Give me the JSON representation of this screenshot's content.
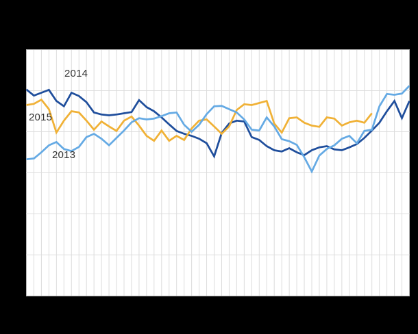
{
  "page": {
    "background": "#000000",
    "plot_background": "#ffffff"
  },
  "chart_data": {
    "type": "line",
    "title": "",
    "xlabel": "",
    "ylabel": "",
    "axis_tick_labels_visible": false,
    "note": "Weekly line chart; axis labels not visible against black background. Values are in horizontal-gridline units (0 = bottom border, 6 = top border).",
    "grid": true,
    "grid_color": "#dcdcdc",
    "border_color": "#b3b3b3",
    "label_color": "#333333",
    "x": [
      1,
      2,
      3,
      4,
      5,
      6,
      7,
      8,
      9,
      10,
      11,
      12,
      13,
      14,
      15,
      16,
      17,
      18,
      19,
      20,
      21,
      22,
      23,
      24,
      25,
      26,
      27,
      28,
      29,
      30,
      31,
      32,
      33,
      34,
      35,
      36,
      37,
      38,
      39,
      40,
      41,
      42,
      43,
      44,
      45,
      46,
      47,
      48,
      49,
      50,
      51,
      52
    ],
    "x_count": 52,
    "ylim": [
      0,
      6
    ],
    "series": [
      {
        "name": "2014",
        "color": "#1f4e9c",
        "values": [
          5.03,
          4.88,
          4.95,
          5.02,
          4.75,
          4.62,
          4.95,
          4.87,
          4.72,
          4.47,
          4.42,
          4.4,
          4.42,
          4.45,
          4.48,
          4.77,
          4.6,
          4.5,
          4.35,
          4.18,
          4.02,
          3.95,
          3.9,
          3.83,
          3.72,
          3.4,
          3.97,
          4.2,
          4.27,
          4.25,
          3.87,
          3.8,
          3.65,
          3.55,
          3.52,
          3.6,
          3.5,
          3.43,
          3.55,
          3.62,
          3.65,
          3.57,
          3.55,
          3.62,
          3.7,
          3.85,
          4.03,
          4.22,
          4.5,
          4.75,
          4.33,
          4.75
        ]
      },
      {
        "name": "2015",
        "color": "#f0b136",
        "values": [
          4.65,
          4.68,
          4.78,
          4.55,
          3.98,
          4.27,
          4.5,
          4.47,
          4.27,
          4.05,
          4.25,
          4.13,
          4.02,
          4.27,
          4.37,
          4.15,
          3.9,
          3.78,
          4.03,
          3.78,
          3.9,
          3.8,
          4.08,
          4.27,
          4.3,
          4.13,
          3.95,
          4.13,
          4.53,
          4.67,
          4.65,
          4.7,
          4.75,
          4.2,
          3.98,
          4.33,
          4.35,
          4.22,
          4.15,
          4.12,
          4.35,
          4.32,
          4.15,
          4.23,
          4.27,
          4.22,
          4.45
        ]
      },
      {
        "name": "2013",
        "color": "#65aae4",
        "values": [
          3.33,
          3.35,
          3.5,
          3.67,
          3.75,
          3.58,
          3.53,
          3.63,
          3.87,
          3.95,
          3.83,
          3.67,
          3.85,
          4.03,
          4.23,
          4.33,
          4.3,
          4.32,
          4.38,
          4.45,
          4.47,
          4.17,
          4.0,
          4.17,
          4.43,
          4.62,
          4.63,
          4.55,
          4.47,
          4.3,
          4.05,
          4.03,
          4.35,
          4.13,
          3.82,
          3.77,
          3.68,
          3.38,
          3.03,
          3.42,
          3.58,
          3.67,
          3.83,
          3.9,
          3.72,
          4.02,
          4.05,
          4.62,
          4.92,
          4.9,
          4.93,
          5.12
        ]
      }
    ]
  }
}
